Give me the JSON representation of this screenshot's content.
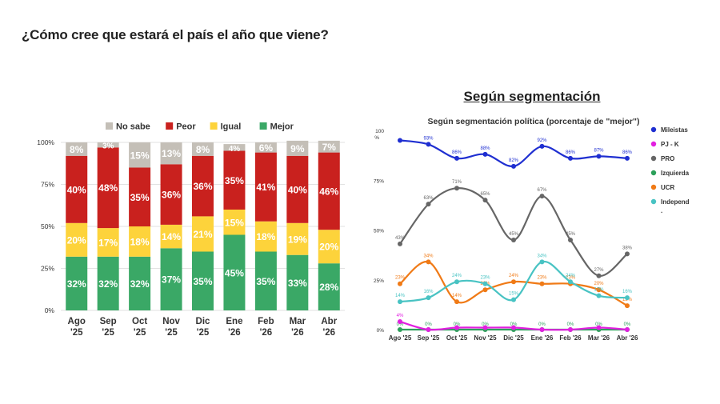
{
  "page": {
    "title": "¿Cómo cree que estará el país el año que viene?",
    "right_heading": "Según segmentación"
  },
  "colors": {
    "no_sabe": "#c4bfb7",
    "peor": "#c9211e",
    "igual": "#fdd33b",
    "mejor": "#3aa866",
    "milei": "#1f2fd1",
    "pjk": "#e21fe0",
    "pro": "#666666",
    "izq": "#2ca05a",
    "ucr": "#f07a16",
    "indep": "#48c3c3"
  },
  "chart_data": [
    {
      "type": "bar",
      "stacked": true,
      "categories": [
        "Ago '25",
        "Sep '25",
        "Oct '25",
        "Nov '25",
        "Dic '25",
        "Ene '26",
        "Feb '26",
        "Mar '26",
        "Abr '26"
      ],
      "series": [
        {
          "name": "Mejor",
          "values": [
            32,
            32,
            32,
            37,
            35,
            45,
            35,
            33,
            28
          ]
        },
        {
          "name": "Igual",
          "values": [
            20,
            17,
            18,
            14,
            21,
            15,
            18,
            19,
            20
          ]
        },
        {
          "name": "Peor",
          "values": [
            40,
            48,
            35,
            36,
            36,
            35,
            41,
            40,
            46
          ]
        },
        {
          "name": "No sabe",
          "values": [
            8,
            3,
            15,
            13,
            8,
            4,
            6,
            9,
            7
          ]
        }
      ],
      "legend_order": [
        "No sabe",
        "Peor",
        "Igual",
        "Mejor"
      ],
      "legend_position": "top",
      "yticks": [
        "0%",
        "25%",
        "50%",
        "75%",
        "100%"
      ],
      "ylim": [
        0,
        100
      ],
      "grid": true
    },
    {
      "type": "line",
      "title": "Según segmentación política (porcentaje de \"mejor\")",
      "categories": [
        "Ago '25",
        "Sep '25",
        "Oct '25",
        "Nov '25",
        "Dic '25",
        "Ene '26",
        "Feb '26",
        "Mar '26",
        "Abr '26"
      ],
      "ytick_labels": [
        "0%",
        "25%",
        "50%",
        "75%",
        "100"
      ],
      "ytick_values": [
        0,
        25,
        50,
        75,
        100
      ],
      "ylim": [
        0,
        100
      ],
      "legend_position": "right",
      "series": [
        {
          "name": "Mileistas",
          "values": [
            95,
            93,
            86,
            88,
            82,
            92,
            86,
            87,
            86
          ],
          "labels": [
            "",
            "93%",
            "86%",
            "88%",
            "82%",
            "92%",
            "86%",
            "87%",
            "86%"
          ]
        },
        {
          "name": "PJ - K",
          "values": [
            4,
            0,
            1,
            1,
            1,
            0,
            0,
            1,
            0
          ],
          "labels": [
            "4%",
            "",
            "",
            "",
            "",
            "",
            "",
            "",
            ""
          ]
        },
        {
          "name": "PRO",
          "values": [
            43,
            63,
            71,
            65,
            45,
            67,
            45,
            27,
            38
          ],
          "labels": [
            "43%",
            "63%",
            "71%",
            "65%",
            "45%",
            "67%",
            "45%",
            "27%",
            "38%"
          ]
        },
        {
          "name": "Izquierda",
          "values": [
            0,
            0,
            0,
            0,
            0,
            0,
            0,
            0,
            0
          ],
          "labels": [
            "0%",
            "0%",
            "0%",
            "0%",
            "0%",
            "0%",
            "0%",
            "0%",
            "0%"
          ]
        },
        {
          "name": "UCR",
          "values": [
            23,
            34,
            14,
            20,
            24,
            23,
            23,
            20,
            12
          ],
          "labels": [
            "23%",
            "34%",
            "14%",
            "20%",
            "24%",
            "23%",
            "23%",
            "20%",
            "12%"
          ]
        },
        {
          "name": "Independ",
          "values": [
            14,
            16,
            24,
            23,
            15,
            34,
            24,
            17,
            16
          ],
          "labels": [
            "14%",
            "16%",
            "24%",
            "23%",
            "15%",
            "34%",
            "24%",
            "17%",
            "16%"
          ]
        }
      ],
      "legend_extra": "."
    }
  ]
}
